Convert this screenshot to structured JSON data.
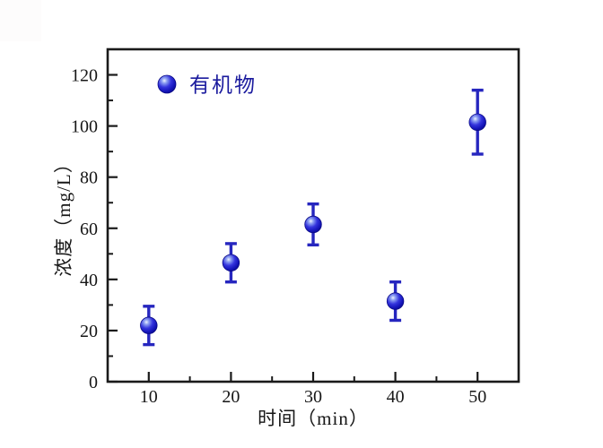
{
  "chart_data": {
    "type": "scatter",
    "title": "",
    "xlabel": "时间（min）",
    "ylabel": "浓度（mg/L）",
    "legend": [
      {
        "label": "有机物",
        "marker": "glossy-sphere",
        "color": "#1b1bd0"
      }
    ],
    "legend_position": "top-left-inside",
    "grid": false,
    "xlim": [
      5,
      55
    ],
    "ylim": [
      0,
      130
    ],
    "xticks": [
      10,
      20,
      30,
      40,
      50
    ],
    "yticks": [
      0,
      20,
      40,
      60,
      80,
      100,
      120
    ],
    "x_minor_ticks": [
      15,
      25,
      35,
      45
    ],
    "y_minor_ticks": [
      10,
      30,
      50,
      70,
      90,
      110,
      130
    ],
    "series": [
      {
        "name": "有机物",
        "x": [
          10,
          20,
          30,
          40,
          50
        ],
        "y": [
          22,
          46.5,
          61.5,
          31.5,
          101.5
        ],
        "y_err": [
          7.5,
          7.5,
          8,
          7.5,
          12.5
        ]
      }
    ],
    "colors": {
      "marker": "#1b1bd0",
      "marker_edge": "#0a0a85",
      "marker_highlight": "#eef2ff",
      "error_bar": "#2626bf",
      "axis": "#1a1a1a",
      "tick_label": "#161616",
      "legend_text": "#1b1b9e",
      "background": "#ffffff"
    }
  }
}
